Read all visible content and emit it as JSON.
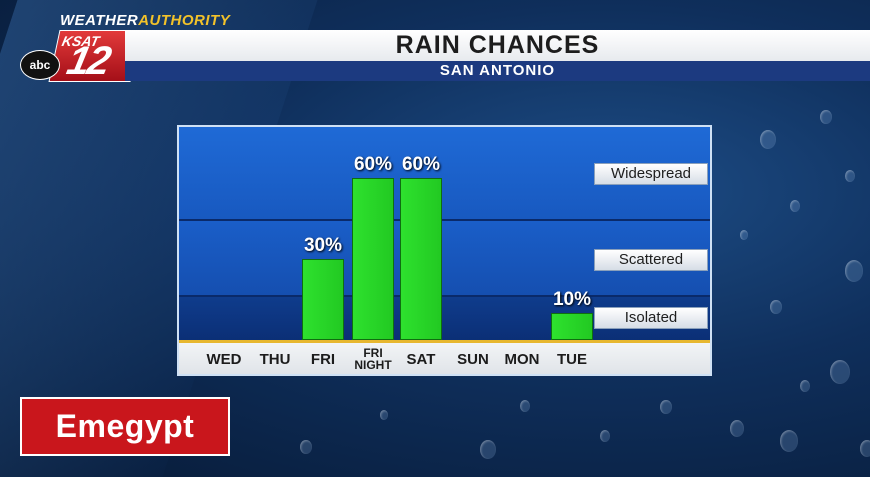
{
  "branding": {
    "weather_prefix": "WEATHER",
    "weather_accent": "AUTHORITY",
    "station_name": "KSAT",
    "channel_number": "12",
    "network": "abc"
  },
  "header": {
    "title": "RAIN CHANCES",
    "subtitle": "SAN ANTONIO"
  },
  "chart_data": {
    "type": "bar",
    "categories": [
      "WED",
      "THU",
      "FRI",
      "FRI NIGHT",
      "SAT",
      "SUN",
      "MON",
      "TUE"
    ],
    "category_lines": [
      [
        "WED"
      ],
      [
        "THU"
      ],
      [
        "FRI"
      ],
      [
        "FRI",
        "NIGHT"
      ],
      [
        "SAT"
      ],
      [
        "SUN"
      ],
      [
        "MON"
      ],
      [
        "TUE"
      ]
    ],
    "values": [
      0,
      0,
      30,
      60,
      60,
      0,
      0,
      10
    ],
    "data_labels": [
      "",
      "",
      "30%",
      "60%",
      "60%",
      "",
      "",
      "10%"
    ],
    "ylim": [
      0,
      100
    ],
    "levels": [
      {
        "label": "Widespread"
      },
      {
        "label": "Scattered"
      },
      {
        "label": "Isolated"
      }
    ],
    "bar_color": "#2ee12e",
    "grid": false,
    "legend": "none"
  },
  "badge": {
    "text": "Emegypt",
    "color": "#c9161c"
  }
}
